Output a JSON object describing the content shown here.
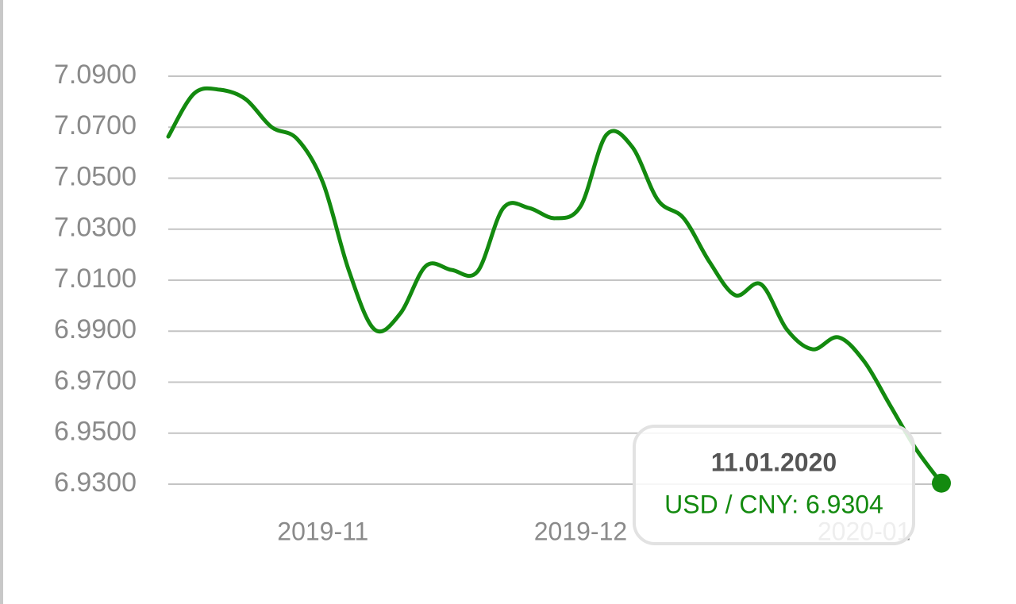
{
  "chart_data": {
    "type": "line",
    "categories": [
      null,
      null,
      null,
      null,
      null,
      null,
      "2019-11",
      null,
      null,
      null,
      null,
      null,
      null,
      null,
      null,
      null,
      "2019-12",
      null,
      null,
      null,
      null,
      null,
      null,
      null,
      null,
      null,
      null,
      "2020-01",
      null,
      null,
      null
    ],
    "series": [
      {
        "name": "USD / CNY",
        "color": "#138a0f",
        "values": [
          7.0663,
          7.0832,
          7.0847,
          7.081,
          7.0701,
          7.0654,
          7.0483,
          7.014,
          6.9907,
          6.9969,
          7.0156,
          7.014,
          7.0134,
          7.0383,
          7.0383,
          7.0343,
          7.039,
          7.067,
          7.0623,
          7.0414,
          7.0343,
          7.0172,
          7.0041,
          7.0084,
          6.9907,
          6.9829,
          6.9876,
          6.9782,
          6.9611,
          6.944,
          6.9304
        ]
      }
    ],
    "ylim": [
      6.93,
      7.09
    ],
    "yticks": [
      {
        "value": 7.09,
        "label": "7.0900"
      },
      {
        "value": 7.07,
        "label": "7.0700"
      },
      {
        "value": 7.05,
        "label": "7.0500"
      },
      {
        "value": 7.03,
        "label": "7.0300"
      },
      {
        "value": 7.01,
        "label": "7.0100"
      },
      {
        "value": 6.99,
        "label": "6.9900"
      },
      {
        "value": 6.97,
        "label": "6.9700"
      },
      {
        "value": 6.95,
        "label": "6.9500"
      },
      {
        "value": 6.93,
        "label": "6.9300"
      }
    ],
    "grid": true,
    "tooltip": {
      "title": "11.01.2020",
      "text": "USD / CNY: 6.9304"
    }
  }
}
